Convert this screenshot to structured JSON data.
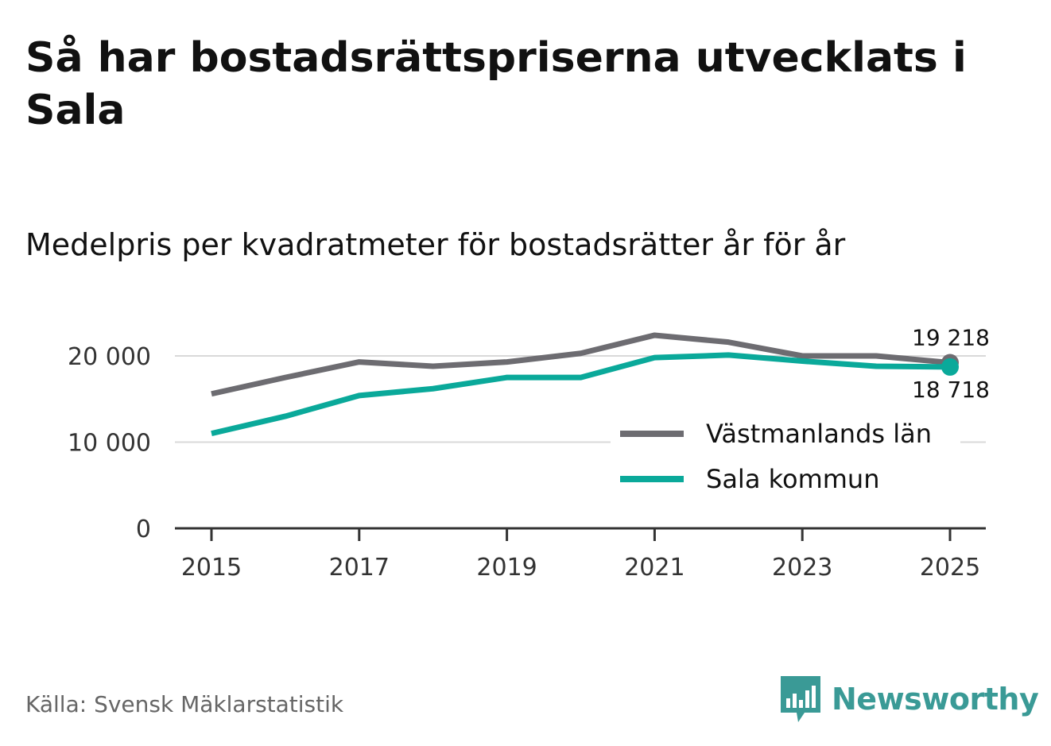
{
  "title": "Så har bostadsrättspriserna utvecklats i Sala",
  "subtitle": "Medelpris per kvadratmeter för bostadsrätter år för år",
  "source": "Källa: Svensk Mäklarstatistik",
  "brand": {
    "name": "Newsworthy",
    "icon": "newsworthy-logo-icon",
    "color": "#3a9a96"
  },
  "chart_data": {
    "type": "line",
    "title": "Så har bostadsrättspriserna utvecklats i Sala",
    "subtitle": "Medelpris per kvadratmeter för bostadsrätter år för år",
    "xlabel": "",
    "ylabel": "",
    "x": [
      2015,
      2016,
      2017,
      2018,
      2019,
      2020,
      2021,
      2022,
      2023,
      2024,
      2025
    ],
    "xticks": [
      "2015",
      "2017",
      "2019",
      "2021",
      "2023",
      "2025"
    ],
    "yticks": [
      {
        "value": 0,
        "label": "0"
      },
      {
        "value": 10000,
        "label": "10 000"
      },
      {
        "value": 20000,
        "label": "20 000"
      }
    ],
    "xlim": [
      2014.5,
      2025.5
    ],
    "ylim": [
      0,
      20000
    ],
    "grid": true,
    "legend_position": "bottom-right",
    "series": [
      {
        "name": "Västmanlands län",
        "color": "#6d6c71",
        "values": [
          15600,
          17500,
          19300,
          18800,
          19300,
          20300,
          22400,
          21600,
          20000,
          20000,
          19218
        ],
        "end_label": "19 218",
        "end_label_position": "above"
      },
      {
        "name": "Sala kommun",
        "color": "#0aa99a",
        "values": [
          11000,
          13000,
          15400,
          16200,
          17500,
          17500,
          19800,
          20100,
          19400,
          18800,
          18718
        ],
        "end_label": "18 718",
        "end_label_position": "below"
      }
    ]
  }
}
